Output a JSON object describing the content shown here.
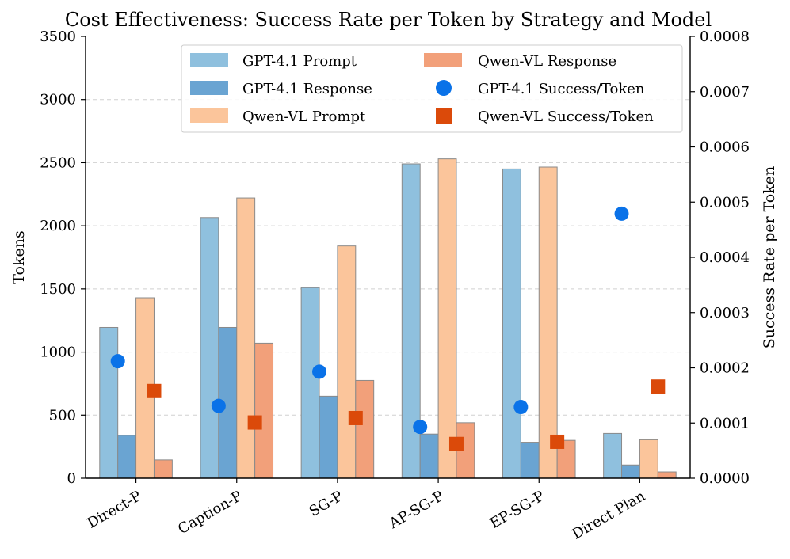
{
  "chart_data": {
    "type": "bar",
    "title": "Cost Effectiveness: Success Rate per Token by Strategy and Model",
    "ylabel": "Tokens",
    "y2label": "Success Rate per Token",
    "ylim": [
      0,
      3500
    ],
    "y2lim": [
      0,
      0.0008
    ],
    "yticks": [
      0,
      500,
      1000,
      1500,
      2000,
      2500,
      3000,
      3500
    ],
    "y2ticks": [
      "0.0000",
      "0.0001",
      "0.0002",
      "0.0003",
      "0.0004",
      "0.0005",
      "0.0006",
      "0.0007",
      "0.0008"
    ],
    "categories": [
      "Direct-P",
      "Caption-P",
      "SG-P",
      "AP-SG-P",
      "EP-SG-P",
      "Direct Plan"
    ],
    "grid": "horizontal dashed",
    "legend_position": "top-center",
    "series": [
      {
        "name": "GPT-4.1 Prompt",
        "kind": "bar",
        "color": "#8fc0de",
        "values": [
          1195,
          2065,
          1510,
          2490,
          2450,
          355
        ]
      },
      {
        "name": "GPT-4.1 Response",
        "kind": "bar",
        "color": "#6aa4d2",
        "values": [
          340,
          1195,
          650,
          350,
          285,
          105
        ]
      },
      {
        "name": "Qwen-VL Prompt",
        "kind": "bar",
        "color": "#fbc59b",
        "values": [
          1430,
          2220,
          1840,
          2530,
          2465,
          305
        ]
      },
      {
        "name": "Qwen-VL Response",
        "kind": "bar",
        "color": "#f2a07a",
        "values": [
          145,
          1070,
          775,
          440,
          300,
          50
        ]
      }
    ],
    "line_series": [
      {
        "name": "GPT-4.1 Success/Token",
        "kind": "scatter",
        "marker": "circle",
        "color": "#0a72e8",
        "values": [
          0.000212,
          0.000131,
          0.000193,
          9.3e-05,
          0.000129,
          0.000479
        ]
      },
      {
        "name": "Qwen-VL Success/Token",
        "kind": "scatter",
        "marker": "square",
        "color": "#db4a0a",
        "values": [
          0.000158,
          0.000101,
          0.000109,
          6.2e-05,
          6.6e-05,
          0.000166
        ]
      }
    ],
    "legend": [
      "GPT-4.1 Prompt",
      "GPT-4.1 Response",
      "Qwen-VL Prompt",
      "Qwen-VL Response",
      "GPT-4.1 Success/Token",
      "Qwen-VL Success/Token"
    ]
  }
}
